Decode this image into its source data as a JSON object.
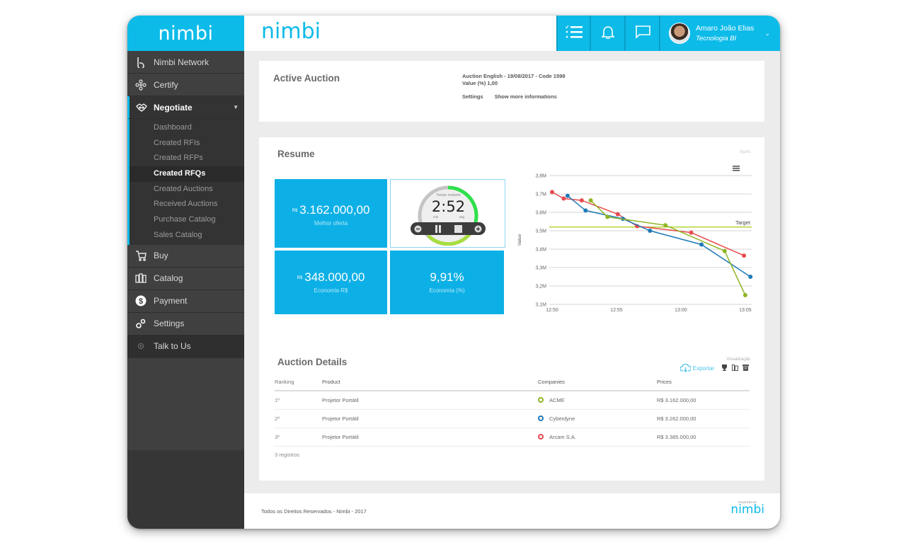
{
  "brand": {
    "name": "nimbi",
    "accent": "#0dbbe9",
    "sidebar_bg": "#363636"
  },
  "header": {
    "logo": "nimbi",
    "icons": [
      "task-list-icon",
      "bell-icon",
      "chat-icon"
    ],
    "user": {
      "name": "Amaro João Elias",
      "role": "Tecnologia BI"
    }
  },
  "sidebar": {
    "logo": "nimbi",
    "items": [
      {
        "label": "Nimbi Network",
        "icon": "network-icon"
      },
      {
        "label": "Certify",
        "icon": "certify-icon"
      },
      {
        "label": "Negotiate",
        "icon": "negotiate-icon",
        "expanded": true
      }
    ],
    "negotiate_sub": [
      {
        "label": "Dashboard"
      },
      {
        "label": "Created RFIs"
      },
      {
        "label": "Created RFPs"
      },
      {
        "label": "Created RFQs",
        "active": true
      },
      {
        "label": "Created Auctions"
      },
      {
        "label": "Received Auctions"
      },
      {
        "label": "Purchase Catalog"
      },
      {
        "label": "Sales Catalog"
      }
    ],
    "items_after": [
      {
        "label": "Buy",
        "icon": "cart-icon"
      },
      {
        "label": "Catalog",
        "icon": "catalog-icon"
      },
      {
        "label": "Payment",
        "icon": "dollar-icon"
      },
      {
        "label": "Settings",
        "icon": "settings-icon"
      },
      {
        "label": "Talk to Us",
        "icon": "chat-dot-icon"
      }
    ]
  },
  "active_auction": {
    "title": "Active Auction",
    "line1": "Auction English - 19/08/2017 - Code 1598",
    "line2": "Value (%) 1,00",
    "links": [
      "Settings",
      "Show more informations"
    ]
  },
  "resume": {
    "title": "Resume",
    "tiles": [
      {
        "currency": "R$",
        "value": "3.162.000,00",
        "label": "Melhor oferta"
      },
      {
        "currency": "R$",
        "value": "348.000,00",
        "label": "Economia R$"
      },
      {
        "currency": "",
        "value": "9,91%",
        "label": "Economia (%)"
      }
    ],
    "timer": {
      "label": "Tempo restante",
      "value": "2:52",
      "unit_min": "min",
      "unit_sec": "seg",
      "progress_pct": 75
    },
    "chart_credit": "Ajuns"
  },
  "chart_data": {
    "type": "line",
    "title": "",
    "xlabel": "",
    "ylabel": "Value",
    "x_ticks": [
      "12:50",
      "12:55",
      "13:00",
      "13:05"
    ],
    "y_ticks": [
      "3,1M",
      "3,2M",
      "3,3M",
      "3,4M",
      "3,5M",
      "3,6M",
      "3,7M",
      "3,8M"
    ],
    "ylim": [
      3100000,
      3800000
    ],
    "xlim_minutes": [
      0,
      15.5
    ],
    "grid": true,
    "legend": "none",
    "target": {
      "label": "Target",
      "value": 3520000,
      "color": "#b5d334"
    },
    "series": [
      {
        "name": "Arcam S.A.",
        "color": "#e84a4f",
        "points": [
          [
            0,
            3710000
          ],
          [
            0.9,
            3675000
          ],
          [
            2.3,
            3665000
          ],
          [
            5.1,
            3590000
          ],
          [
            6.6,
            3525000
          ],
          [
            10.8,
            3490000
          ],
          [
            14.9,
            3365000
          ]
        ]
      },
      {
        "name": "Cyberdyne",
        "color": "#1f7ab8",
        "points": [
          [
            1.2,
            3690000
          ],
          [
            2.6,
            3610000
          ],
          [
            5.5,
            3565000
          ],
          [
            7.6,
            3500000
          ],
          [
            11.6,
            3425000
          ],
          [
            15.4,
            3250000
          ]
        ]
      },
      {
        "name": "ACME",
        "color": "#8fb526",
        "points": [
          [
            3.0,
            3665000
          ],
          [
            4.3,
            3575000
          ],
          [
            8.8,
            3530000
          ],
          [
            13.4,
            3390000
          ],
          [
            15.0,
            3150000
          ]
        ]
      }
    ]
  },
  "details": {
    "title": "Auction Details",
    "visualization_label": "Visualização",
    "export_label": "Exportar",
    "columns": [
      "Ranking",
      "Product",
      "Companies",
      "Prices"
    ],
    "rows": [
      {
        "rank": "1º",
        "product": "Projetor Portátil",
        "company": "ACME",
        "color": "#8fb526",
        "price": "R$ 3.162.000,00"
      },
      {
        "rank": "2º",
        "product": "Projetor Portátil",
        "company": "Cyberdyne",
        "color": "#1f7ab8",
        "price": "R$ 3.262.000,00"
      },
      {
        "rank": "3º",
        "product": "Projetor Portátil",
        "company": "Arcam S.A.",
        "color": "#e84a4f",
        "price": "R$ 3.385.000,00"
      }
    ],
    "records": "3  registros"
  },
  "footer": {
    "copyright": "Todos os Direitos Reservados - Nimbi - 2017",
    "powered_by": "POWERED BY",
    "logo": "nimbi"
  }
}
